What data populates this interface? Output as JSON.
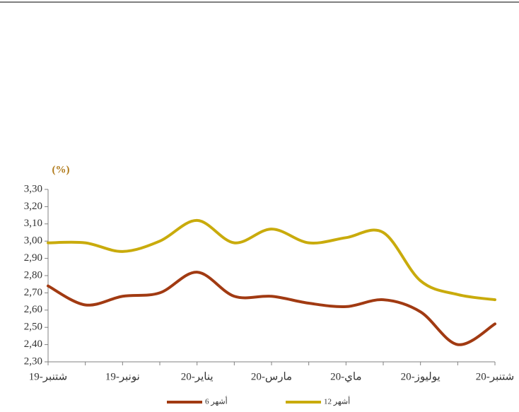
{
  "chart_data": {
    "type": "line",
    "y_unit": "(%)",
    "categories": [
      "شتنبر-19",
      null,
      "نونبر-19",
      null,
      "يناير-20",
      null,
      "مارس-20",
      null,
      "ماي-20",
      null,
      "يوليوز-20",
      null,
      "شتنبر-20"
    ],
    "series": [
      {
        "name": "6 أشهر",
        "color": "#a13a12",
        "values": [
          2.74,
          2.63,
          2.68,
          2.7,
          2.82,
          2.68,
          2.68,
          2.64,
          2.62,
          2.66,
          2.59,
          2.4,
          2.52
        ]
      },
      {
        "name": "12 أشهر",
        "color": "#c9ab0c",
        "values": [
          2.99,
          2.99,
          2.94,
          3.0,
          3.12,
          2.99,
          3.07,
          2.99,
          3.02,
          3.05,
          2.77,
          2.69,
          2.66
        ]
      }
    ],
    "ylim": [
      2.3,
      3.3
    ],
    "yticks": [
      {
        "value": 2.3,
        "label": "2,30"
      },
      {
        "value": 2.4,
        "label": "2,40"
      },
      {
        "value": 2.5,
        "label": "2,50"
      },
      {
        "value": 2.6,
        "label": "2,60"
      },
      {
        "value": 2.7,
        "label": "2,70"
      },
      {
        "value": 2.8,
        "label": "2,80"
      },
      {
        "value": 2.9,
        "label": "2,90"
      },
      {
        "value": 3.0,
        "label": "3,00"
      },
      {
        "value": 3.1,
        "label": "3,10"
      },
      {
        "value": 3.2,
        "label": "3,20"
      },
      {
        "value": 3.3,
        "label": "3,30"
      }
    ],
    "grid": false,
    "legend": "bottom"
  }
}
